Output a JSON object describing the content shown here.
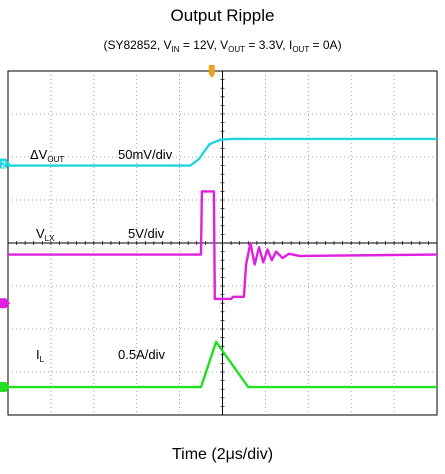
{
  "chart_data": {
    "type": "line",
    "title": "Output Ripple",
    "subtitle": {
      "part": "SY82852",
      "vin_label": "V",
      "vin_sub": "IN",
      "vin_value": " = 12V",
      "vout_label": "V",
      "vout_sub": "OUT",
      "vout_value": " = 3.3V",
      "iout_label": "I",
      "iout_sub": "OUT",
      "iout_value": " = 0A"
    },
    "xlabel": "Time (2μs/div)",
    "grid": {
      "x_divisions": 10,
      "y_divisions": 8,
      "minor_per_div": 5
    },
    "x_range_div": [
      0,
      10
    ],
    "series": [
      {
        "name_main": "ΔV",
        "name_sub": "OUT",
        "scale": "50mV/div",
        "color": "#22d4e0",
        "marker": "2",
        "marker_y_div": 2.15,
        "points_div": [
          [
            0,
            2.2
          ],
          [
            4.25,
            2.2
          ],
          [
            4.45,
            2.05
          ],
          [
            4.7,
            1.7
          ],
          [
            4.95,
            1.6
          ],
          [
            5.2,
            1.58
          ],
          [
            10,
            1.58
          ]
        ]
      },
      {
        "name_main": "V",
        "name_sub": "LX",
        "scale": "5V/div",
        "color": "#e020e0",
        "marker": "",
        "marker_y_div": 5.4,
        "points_div": [
          [
            0,
            4.27
          ],
          [
            4.5,
            4.27
          ],
          [
            4.52,
            2.8
          ],
          [
            4.8,
            2.8
          ],
          [
            4.82,
            5.3
          ],
          [
            5.2,
            5.3
          ],
          [
            5.25,
            5.25
          ],
          [
            5.5,
            5.25
          ],
          [
            5.55,
            4.5
          ],
          [
            5.65,
            4.0
          ],
          [
            5.75,
            4.5
          ],
          [
            5.85,
            4.1
          ],
          [
            5.95,
            4.45
          ],
          [
            6.05,
            4.15
          ],
          [
            6.15,
            4.4
          ],
          [
            6.25,
            4.2
          ],
          [
            6.4,
            4.35
          ],
          [
            6.55,
            4.25
          ],
          [
            6.8,
            4.3
          ],
          [
            10,
            4.27
          ]
        ]
      },
      {
        "name_main": "I",
        "name_sub": "L",
        "scale": "0.5A/div",
        "color": "#22e022",
        "marker": "",
        "marker_y_div": 7.35,
        "points_div": [
          [
            0,
            7.35
          ],
          [
            4.5,
            7.35
          ],
          [
            4.85,
            6.3
          ],
          [
            5.6,
            7.35
          ],
          [
            10,
            7.35
          ]
        ]
      }
    ],
    "trigger_marker_x_div": 4.75
  }
}
